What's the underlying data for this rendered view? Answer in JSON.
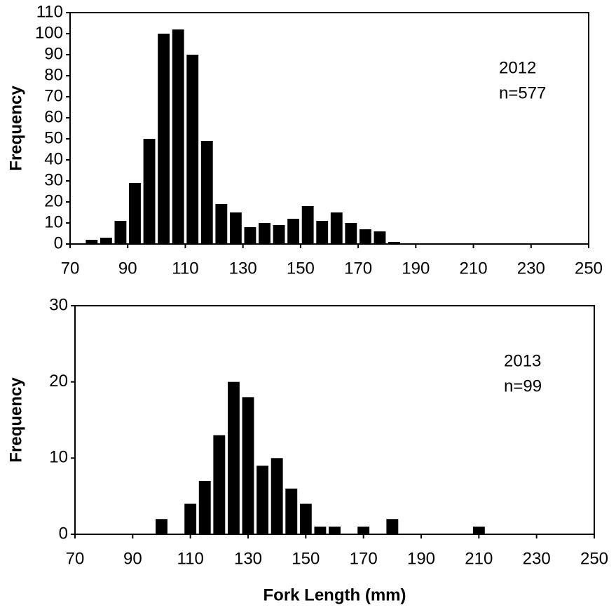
{
  "chart_data": [
    {
      "type": "histogram",
      "ylabel": "Frequency",
      "annotations": [
        "2012",
        "n=577"
      ],
      "bins": [
        75,
        80,
        85,
        90,
        95,
        100,
        105,
        110,
        115,
        120,
        125,
        130,
        135,
        140,
        145,
        150,
        155,
        160,
        165,
        170,
        175,
        180,
        185
      ],
      "values": [
        2,
        3,
        11,
        29,
        50,
        100,
        102,
        90,
        49,
        19,
        15,
        8,
        10,
        9,
        12,
        18,
        11,
        15,
        10,
        7,
        6,
        1
      ],
      "color": "#000000",
      "xlim": [
        70,
        250
      ],
      "xticks": [
        70,
        90,
        110,
        130,
        150,
        170,
        190,
        210,
        230,
        250
      ],
      "ylim": [
        0,
        110
      ],
      "yticks": [
        0,
        10,
        20,
        30,
        40,
        50,
        60,
        70,
        80,
        90,
        100,
        110
      ]
    },
    {
      "type": "histogram",
      "ylabel": "Frequency",
      "xlabel": "Fork Length (mm)",
      "annotations": [
        "2013",
        "n=99"
      ],
      "bins": [
        97.5,
        102.5,
        107.5,
        112.5,
        117.5,
        122.5,
        127.5,
        132.5,
        137.5,
        142.5,
        147.5,
        152.5,
        157.5,
        162.5,
        167.5,
        172.5,
        177.5,
        182.5,
        187.5,
        192.5,
        197.5,
        202.5,
        207.5,
        212.5
      ],
      "values": [
        2,
        0,
        4,
        7,
        13,
        20,
        18,
        9,
        10,
        6,
        4,
        1,
        1,
        0,
        1,
        0,
        2,
        0,
        0,
        0,
        0,
        0,
        1
      ],
      "color": "#000000",
      "xlim": [
        70,
        250
      ],
      "xticks": [
        70,
        90,
        110,
        130,
        150,
        170,
        190,
        210,
        230,
        250
      ],
      "ylim": [
        0,
        30
      ],
      "yticks": [
        0,
        10,
        20,
        30
      ]
    }
  ]
}
